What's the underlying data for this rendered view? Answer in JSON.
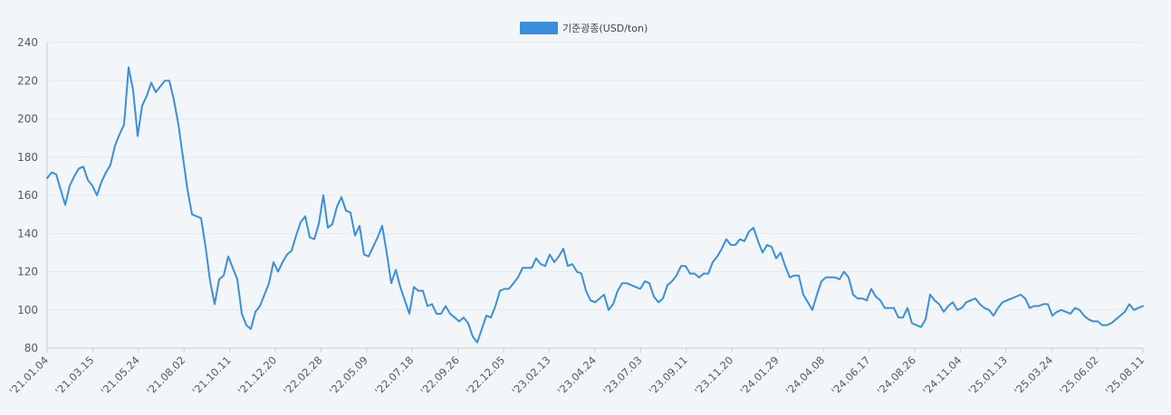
{
  "legend": {
    "label": "기준광종(USD/ton)"
  },
  "colors": {
    "series": "#3a8fdc",
    "grid": "#e4e8ec",
    "axis": "#c9ced3",
    "text": "#555a60"
  },
  "chart_data": {
    "type": "line",
    "title": "",
    "xlabel": "",
    "ylabel": "",
    "ylim": [
      80,
      240
    ],
    "y_ticks": [
      80,
      100,
      120,
      140,
      160,
      180,
      200,
      220,
      240
    ],
    "grid": "horizontal",
    "legend_position": "top-center",
    "x_tick_labels": [
      "'21.01.04",
      "'21.03.15",
      "'21.05.24",
      "'21.08.02",
      "'21.10.11",
      "'21.12.20",
      "'22.02.28",
      "'22.05.09",
      "'22.07.18",
      "'22.09.26",
      "'22.12.05",
      "'23.02.13",
      "'23.04.24",
      "'23.07.03",
      "'23.09.11",
      "'23.11.20",
      "'24.01.29",
      "'24.04.08",
      "'24.06.17",
      "'24.08.26",
      "'24.11.04",
      "'25.01.13",
      "'25.03.24",
      "'25.06.02",
      "'25.08.11"
    ],
    "series": [
      {
        "name": "기준광종(USD/ton)",
        "values": [
          169,
          172,
          171,
          163,
          155,
          165,
          170,
          174,
          175,
          168,
          165,
          160,
          167,
          172,
          176,
          186,
          192,
          197,
          227,
          215,
          191,
          207,
          212,
          219,
          214,
          217,
          220,
          220,
          210,
          197,
          180,
          163,
          150,
          149,
          148,
          133,
          115,
          103,
          116,
          118,
          128,
          122,
          116,
          98,
          92,
          90,
          99,
          102,
          108,
          114,
          125,
          120,
          125,
          129,
          131,
          139,
          146,
          149,
          138,
          137,
          145,
          160,
          143,
          145,
          154,
          159,
          152,
          151,
          139,
          144,
          129,
          128,
          133,
          138,
          144,
          130,
          114,
          121,
          112,
          105,
          98,
          112,
          110,
          110,
          102,
          103,
          98,
          98,
          102,
          98,
          96,
          94,
          96,
          93,
          86,
          83,
          90,
          97,
          96,
          102,
          110,
          111,
          111,
          114,
          117,
          122,
          122,
          122,
          127,
          124,
          123,
          129,
          125,
          128,
          132,
          123,
          124,
          120,
          119,
          110,
          105,
          104,
          106,
          108,
          100,
          103,
          110,
          114,
          114,
          113,
          112,
          111,
          115,
          114,
          107,
          104,
          106,
          113,
          115,
          118,
          123,
          123,
          119,
          119,
          117,
          119,
          119,
          125,
          128,
          132,
          137,
          134,
          134,
          137,
          136,
          141,
          143,
          136,
          130,
          134,
          133,
          127,
          130,
          123,
          117,
          118,
          118,
          108,
          104,
          100,
          108,
          115,
          117,
          117,
          117,
          116,
          120,
          117,
          108,
          106,
          106,
          105,
          111,
          107,
          105,
          101,
          101,
          101,
          96,
          96,
          101,
          93,
          92,
          91,
          95,
          108,
          105,
          103,
          99,
          102,
          104,
          100,
          101,
          104,
          105,
          106,
          103,
          101,
          100,
          97,
          101,
          104,
          105,
          106,
          107,
          108,
          106,
          101,
          102,
          102,
          103,
          103,
          97,
          99,
          100,
          99,
          98,
          101,
          100,
          97,
          95,
          94,
          94,
          92,
          92,
          93,
          95,
          97,
          99,
          103,
          100,
          101,
          102
        ]
      }
    ]
  }
}
